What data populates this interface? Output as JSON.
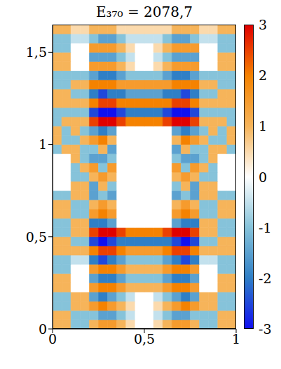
{
  "chart_data": {
    "type": "heatmap",
    "title": "E₃₇₀ = 2078,7",
    "xlim": [
      0,
      1
    ],
    "ylim": [
      0,
      1.65
    ],
    "xticks": [
      0,
      {
        "value": 0.5,
        "label": "0,5"
      },
      1
    ],
    "yticks": [
      0,
      {
        "value": 0.5,
        "label": "0,5"
      },
      1,
      {
        "value": 1.5,
        "label": "1,5"
      }
    ],
    "x_bins": [
      0,
      0.05,
      0.1,
      0.15,
      0.2,
      0.25,
      0.3,
      0.35,
      0.4,
      0.45,
      0.5,
      0.55,
      0.6,
      0.65,
      0.7,
      0.75,
      0.8,
      0.85,
      0.9,
      0.95,
      1
    ],
    "y_bins": [
      0,
      0.05,
      0.1,
      0.15,
      0.2,
      0.25,
      0.3,
      0.35,
      0.4,
      0.45,
      0.5,
      0.55,
      0.6,
      0.65,
      0.7,
      0.75,
      0.8,
      0.85,
      0.9,
      0.95,
      1,
      1.05,
      1.1,
      1.15,
      1.2,
      1.25,
      1.3,
      1.35,
      1.4,
      1.45,
      1.5,
      1.55,
      1.6,
      1.65
    ],
    "z": [
      [
        1,
        1,
        -1,
        -1,
        1,
        1.5,
        1.5,
        1,
        0.5,
        0,
        0,
        0.5,
        1,
        1.5,
        1.5,
        1,
        -1,
        -1,
        1,
        1
      ],
      [
        1,
        1,
        -1,
        -1,
        -1,
        -1.5,
        -1.5,
        -1,
        -0.5,
        0,
        0,
        -0.5,
        -1,
        -1.5,
        -1.5,
        -1,
        -1,
        -1,
        1,
        1
      ],
      [
        -1,
        -1,
        1,
        1,
        1.5,
        2,
        1.5,
        1,
        0.5,
        0,
        0,
        0.5,
        1,
        1.5,
        2,
        1.5,
        1,
        1,
        -1,
        -1
      ],
      [
        -1,
        -1,
        1,
        1,
        -1.5,
        -2,
        -1.5,
        -1,
        -0.5,
        0,
        0,
        -0.5,
        -1,
        -1.5,
        -2,
        -1.5,
        1,
        1,
        -1,
        -1
      ],
      [
        1,
        1,
        0,
        0,
        1.5,
        2,
        2,
        1.5,
        1,
        1,
        1,
        1,
        1.5,
        2,
        2,
        1.5,
        0,
        0,
        1,
        1
      ],
      [
        1,
        1,
        0,
        0,
        -1.5,
        -2,
        -2,
        -1.5,
        -1,
        -1,
        -1,
        -1,
        -1.5,
        -2,
        -2,
        -1.5,
        0,
        0,
        1,
        1
      ],
      [
        -1,
        -1,
        0,
        0,
        1.5,
        2,
        2,
        1.5,
        1,
        1,
        1,
        1,
        1.5,
        2,
        2,
        1.5,
        0,
        0,
        -1,
        -1
      ],
      [
        -1,
        -1,
        -0.5,
        -0.5,
        -2,
        -2.5,
        -2,
        -1.5,
        -1,
        -1,
        -1,
        -1,
        -1.5,
        -2,
        -2.5,
        -2,
        -0.5,
        -0.5,
        -1,
        -1
      ],
      [
        1,
        1,
        1,
        1,
        2,
        2.5,
        2.5,
        2,
        1.5,
        1.5,
        1.5,
        1.5,
        2,
        2.5,
        2.5,
        2,
        1,
        1,
        1,
        1
      ],
      [
        1,
        1,
        -1,
        -1,
        -2.5,
        -3,
        -2.5,
        -2,
        -2,
        -2,
        -2,
        -2,
        -2,
        -2.5,
        -3,
        -2.5,
        -1,
        -1,
        1,
        1
      ],
      [
        -1,
        -1,
        1,
        1,
        2.5,
        3,
        3,
        2.5,
        2,
        2,
        2,
        2,
        2.5,
        3,
        3,
        2.5,
        1,
        1,
        -1,
        -1
      ],
      [
        -1,
        -1,
        1,
        1,
        -2,
        -2,
        -1.5,
        0,
        0,
        0,
        0,
        0,
        0,
        -1.5,
        -2,
        -2,
        1,
        1,
        -1,
        -1
      ],
      [
        1,
        1,
        -1,
        -1,
        1.5,
        2,
        1.5,
        0,
        0,
        0,
        0,
        0,
        0,
        1.5,
        2,
        1.5,
        -1,
        -1,
        1,
        1
      ],
      [
        1,
        1,
        -1,
        -1,
        1,
        1.5,
        1,
        0,
        0,
        0,
        0,
        0,
        0,
        1,
        1.5,
        1,
        -1,
        -1,
        1,
        1
      ],
      [
        -1,
        -1,
        1,
        1,
        -1.5,
        -1,
        -1.5,
        0,
        0,
        0,
        0,
        0,
        0,
        -1.5,
        -1,
        -1.5,
        1,
        1,
        -1,
        -1
      ],
      [
        0,
        0,
        1,
        1,
        -1.5,
        1,
        -1,
        0,
        0,
        0,
        0,
        0,
        0,
        -1,
        1,
        -1.5,
        1,
        1,
        0,
        0
      ],
      [
        0,
        0,
        -1,
        -1,
        1,
        1.5,
        1,
        0,
        0,
        0,
        0,
        0,
        0,
        1,
        1.5,
        1,
        -1,
        -1,
        0,
        0
      ],
      [
        0,
        0,
        -1,
        1,
        1.5,
        -1,
        1.5,
        0,
        0,
        0,
        0,
        0,
        0,
        1.5,
        -1,
        1.5,
        1,
        -1,
        0,
        0
      ],
      [
        0,
        0,
        1,
        -1,
        -1.5,
        -1.5,
        -1,
        0,
        0,
        0,
        0,
        0,
        0,
        -1,
        -1.5,
        -1.5,
        -1,
        1,
        0,
        0
      ],
      [
        -1,
        1,
        1,
        -1,
        -1,
        1,
        -1.5,
        0,
        0,
        0,
        0,
        0,
        0,
        -1.5,
        1,
        -1,
        -1,
        1,
        1,
        -1
      ],
      [
        1,
        -1,
        -1,
        1,
        1.5,
        2,
        1,
        0,
        0,
        0,
        0,
        0,
        0,
        1,
        2,
        1.5,
        1,
        -1,
        -1,
        1
      ],
      [
        1,
        -1,
        1,
        -1,
        -1.5,
        -2,
        -1.5,
        0,
        0,
        0,
        0,
        0,
        0,
        -1.5,
        -2,
        -1.5,
        -1,
        1,
        -1,
        1
      ],
      [
        -1,
        1,
        1,
        1,
        2.5,
        3,
        3,
        2.5,
        2,
        2,
        2,
        2,
        2.5,
        3,
        3,
        2.5,
        1,
        1,
        1,
        -1
      ],
      [
        -1,
        -1,
        -1,
        -1,
        -2.5,
        -3,
        -3,
        -2.5,
        -2,
        -2,
        -2,
        -2,
        -2.5,
        -3,
        -3,
        -2.5,
        -1,
        -1,
        -1,
        -1
      ],
      [
        1,
        1,
        1,
        1,
        2,
        2.5,
        2.5,
        2,
        2,
        2,
        2,
        2,
        2,
        2.5,
        2.5,
        2,
        1,
        1,
        1,
        1
      ],
      [
        1,
        1,
        -1,
        -1,
        -2,
        -2.5,
        -2,
        -2,
        -1.5,
        -1.5,
        -1.5,
        -1.5,
        -2,
        -2,
        -2.5,
        -2,
        -1,
        -1,
        1,
        1
      ],
      [
        -1,
        -1,
        1,
        1,
        2,
        2,
        2,
        1.5,
        1.5,
        1.5,
        1.5,
        1.5,
        1.5,
        2,
        2,
        2,
        1,
        1,
        -1,
        -1
      ],
      [
        -1,
        -1,
        -1,
        -1,
        -1.5,
        -2,
        -2,
        -1.5,
        -1,
        -1,
        -1,
        -1,
        -1.5,
        -2,
        -2,
        -1.5,
        -1,
        -1,
        -1,
        -1
      ],
      [
        1,
        1,
        0,
        0,
        1.5,
        1.5,
        1.5,
        1,
        0.5,
        0,
        0,
        0.5,
        1,
        1.5,
        1.5,
        1.5,
        0,
        0,
        1,
        1
      ],
      [
        1,
        1,
        0,
        0,
        -1.5,
        -1.5,
        -1.5,
        -1,
        -0.5,
        0,
        0,
        -0.5,
        -1,
        -1.5,
        -1.5,
        -1.5,
        0,
        0,
        1,
        1
      ],
      [
        -1,
        -1,
        0,
        0,
        1.5,
        1.5,
        1.5,
        1,
        0.5,
        0,
        0,
        0.5,
        1,
        1.5,
        1.5,
        1.5,
        0,
        0,
        -1,
        -1
      ],
      [
        -1,
        -1,
        -0.5,
        -0.5,
        -1,
        -1.5,
        -1.5,
        -1,
        -0.5,
        -0.5,
        -0.5,
        -0.5,
        -1,
        -1.5,
        -1.5,
        -1,
        -0.5,
        -0.5,
        -1,
        -1
      ],
      [
        1,
        1,
        0.5,
        0.5,
        1,
        1,
        1,
        0.5,
        0.5,
        0.5,
        0.5,
        0.5,
        0.5,
        1,
        1,
        1,
        0.5,
        0.5,
        1,
        1
      ]
    ],
    "colorbar": {
      "range": [
        -3,
        3
      ],
      "ticks": [
        -3,
        -2,
        -1,
        0,
        1,
        2,
        3
      ]
    }
  }
}
